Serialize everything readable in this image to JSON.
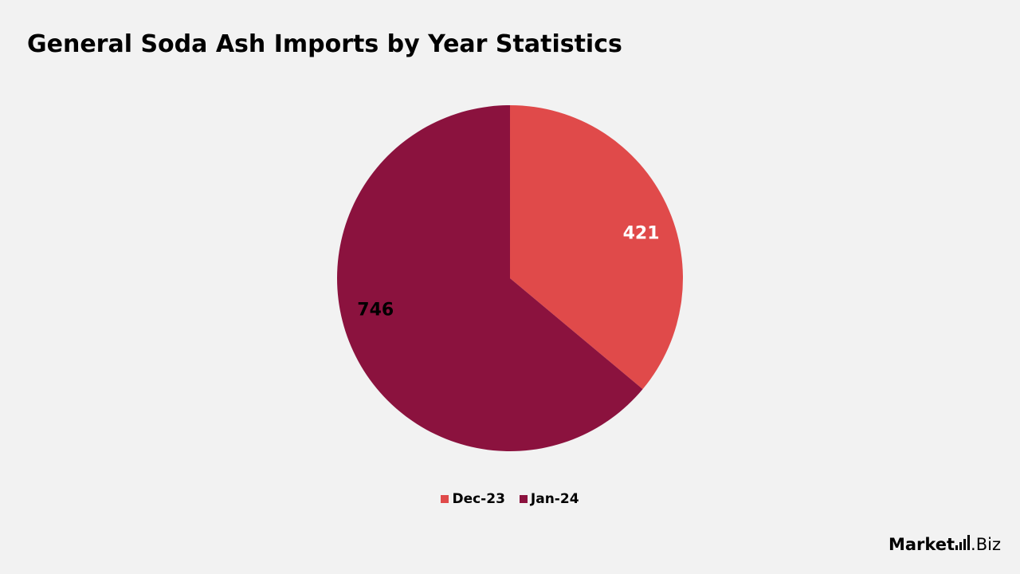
{
  "chart_data": {
    "type": "pie",
    "title": "General Soda Ash Imports by Year Statistics",
    "categories": [
      "Dec-23",
      "Jan-24"
    ],
    "values": [
      421,
      746
    ],
    "colors": [
      "#e04a4a",
      "#8b123e"
    ],
    "label_colors": [
      "#ffffff",
      "#000000"
    ],
    "legend_position": "bottom"
  },
  "brand": {
    "name_main": "Market",
    "name_suffix": ".Biz",
    "icon": "bar-chart-icon"
  }
}
